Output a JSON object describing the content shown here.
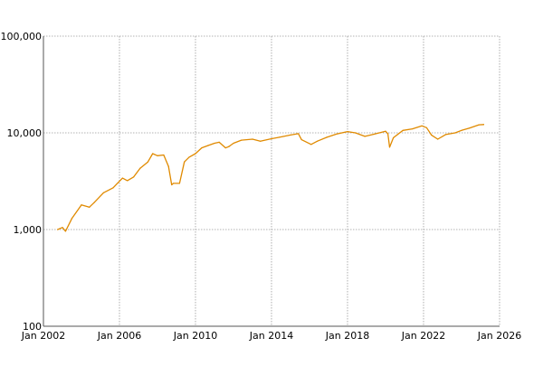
{
  "chart_data": {
    "type": "line",
    "title": "",
    "xlabel": "",
    "ylabel": "",
    "y_scale": "log",
    "ylim": [
      100,
      100000
    ],
    "xlim": [
      "2002-01-01",
      "2026-01-01"
    ],
    "grid": true,
    "legend": "none",
    "x_ticks": [
      "2002-01-01",
      "2006-01-01",
      "2010-01-01",
      "2014-01-01",
      "2018-01-01",
      "2022-01-01",
      "2026-01-01"
    ],
    "x_tick_labels": [
      "Jan 2002",
      "Jan 2006",
      "Jan 2010",
      "Jan 2014",
      "Jan 2018",
      "Jan 2022",
      "Jan 2026"
    ],
    "y_ticks": [
      100,
      1000,
      10000,
      100000
    ],
    "y_tick_labels": [
      "100",
      "1,000",
      "10,000",
      "100,000"
    ],
    "series": [
      {
        "color": "#e08a00",
        "x": [
          "2002-10-01",
          "2003-01-01",
          "2003-03-01",
          "2003-07-01",
          "2004-01-01",
          "2004-06-01",
          "2004-09-01",
          "2005-03-01",
          "2005-09-01",
          "2006-03-01",
          "2006-06-01",
          "2006-10-01",
          "2007-02-01",
          "2007-07-01",
          "2007-10-01",
          "2008-01-01",
          "2008-05-01",
          "2008-08-01",
          "2008-10-01",
          "2008-11-01",
          "2009-03-01",
          "2009-06-01",
          "2009-09-01",
          "2010-01-01",
          "2010-05-01",
          "2010-09-01",
          "2011-01-01",
          "2011-04-01",
          "2011-08-01",
          "2011-10-01",
          "2012-01-01",
          "2012-06-01",
          "2013-01-01",
          "2013-06-01",
          "2014-01-01",
          "2014-06-01",
          "2015-01-01",
          "2015-06-01",
          "2015-08-01",
          "2016-02-01",
          "2016-06-01",
          "2016-12-01",
          "2017-06-01",
          "2018-01-01",
          "2018-06-01",
          "2018-12-01",
          "2019-06-01",
          "2020-01-01",
          "2020-02-15",
          "2020-03-20",
          "2020-06-01",
          "2020-12-01",
          "2021-06-01",
          "2021-12-01",
          "2022-03-01",
          "2022-06-01",
          "2022-10-01",
          "2023-03-01",
          "2023-09-01",
          "2024-01-01",
          "2024-06-01",
          "2024-12-01",
          "2025-03-01"
        ],
        "values": [
          1000,
          1050,
          960,
          1300,
          1800,
          1700,
          1900,
          2400,
          2700,
          3400,
          3200,
          3500,
          4300,
          5000,
          6100,
          5800,
          5900,
          4500,
          2900,
          3000,
          3000,
          5000,
          5600,
          6100,
          7000,
          7400,
          7800,
          8000,
          7000,
          7200,
          7800,
          8400,
          8600,
          8200,
          8700,
          9000,
          9500,
          9800,
          8500,
          7600,
          8200,
          9000,
          9700,
          10300,
          10000,
          9200,
          9700,
          10400,
          9800,
          7100,
          8900,
          10600,
          11000,
          11800,
          11300,
          9500,
          8600,
          9600,
          10000,
          10600,
          11200,
          12100,
          12200
        ]
      }
    ]
  }
}
